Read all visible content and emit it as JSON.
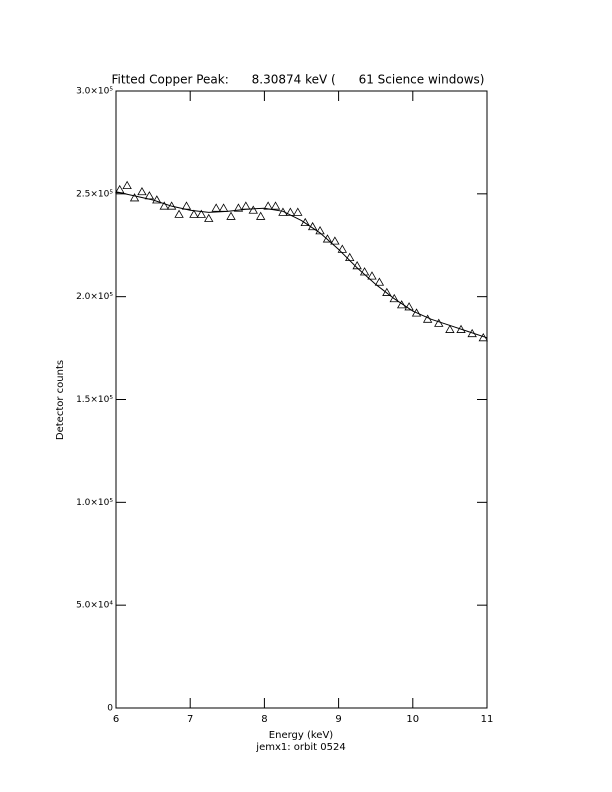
{
  "chart_data": {
    "type": "scatter",
    "title": "Fitted Copper Peak:      8.30874 keV (      61 Science windows)",
    "x_label": "Energy (keV)",
    "y_label": "Detector counts",
    "subtitle": "jemx1: orbit 0524",
    "xlim": [
      6,
      11
    ],
    "ylim": [
      0,
      300000
    ],
    "xticks": [
      6,
      7,
      8,
      9,
      10,
      11
    ],
    "yticks": [
      0,
      {
        "value": 50000,
        "label": "5.0×10⁴"
      },
      {
        "value": 100000,
        "label": "1.0×10⁵"
      },
      {
        "value": 150000,
        "label": "1.5×10⁵"
      },
      {
        "value": 200000,
        "label": "2.0×10⁵"
      },
      {
        "value": 250000,
        "label": "2.5×10⁵"
      },
      {
        "value": 300000,
        "label": "3.0×10⁵"
      }
    ],
    "series": [
      {
        "marker": "triangle",
        "color": "#000000",
        "x": [
          6.05,
          6.15,
          6.25,
          6.35,
          6.45,
          6.55,
          6.65,
          6.75,
          6.85,
          6.95,
          7.05,
          7.15,
          7.25,
          7.35,
          7.45,
          7.55,
          7.65,
          7.75,
          7.85,
          7.95,
          8.05,
          8.15,
          8.25,
          8.35,
          8.45,
          8.55,
          8.65,
          8.75,
          8.85,
          8.95,
          9.05,
          9.15,
          9.25,
          9.35,
          9.45,
          9.55,
          9.65,
          9.75,
          9.85,
          9.95,
          10.05,
          10.2,
          10.35,
          10.5,
          10.65,
          10.8,
          10.95
        ],
        "values": [
          252000,
          254000,
          248000,
          251000,
          249000,
          247000,
          244000,
          244000,
          240000,
          244000,
          240000,
          240000,
          238000,
          243000,
          243000,
          239000,
          243000,
          244000,
          242000,
          239000,
          244000,
          244000,
          241000,
          241000,
          241000,
          236000,
          234000,
          232000,
          228000,
          227000,
          223000,
          219000,
          215000,
          212000,
          210000,
          207000,
          202000,
          199000,
          196000,
          195000,
          192000,
          189000,
          187000,
          184000,
          184000,
          182000,
          180000
        ]
      },
      {
        "marker": "line",
        "color": "#000000",
        "x": [
          6.0,
          6.25,
          6.5,
          6.75,
          7.0,
          7.25,
          7.5,
          7.75,
          8.0,
          8.25,
          8.5,
          8.75,
          9.0,
          9.25,
          9.5,
          9.75,
          10.0,
          10.25,
          10.5,
          10.75,
          11.0
        ],
        "values": [
          251000,
          249000,
          247000,
          244000,
          242000,
          241000,
          241500,
          242500,
          243000,
          241500,
          237000,
          231000,
          223000,
          214000,
          206000,
          199000,
          193000,
          189000,
          186000,
          183000,
          180000
        ]
      }
    ]
  }
}
